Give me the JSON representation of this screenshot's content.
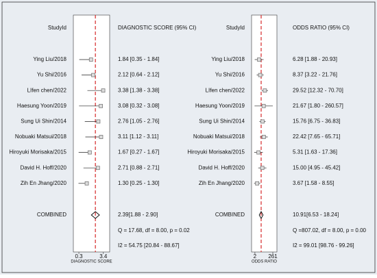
{
  "chart_data": [
    {
      "type": "forest",
      "id_label": "StudyId",
      "stat_label": "DIAGNOSTIC SCORE (95% CI)",
      "studies": [
        "Ying Liu/2018",
        "Yu Shi/2016",
        "LIfen chen/2022",
        "Haesung Yoon/2019",
        "Sung Ui Shin/2014",
        "Nobuaki Matsui/2018",
        "Hiroyuki Morisaka/2015",
        "David H. Hoff/2020",
        "Zih En Jhang/2020"
      ],
      "estimates": [
        1.84,
        2.12,
        3.38,
        3.08,
        2.76,
        3.11,
        1.67,
        2.71,
        1.3
      ],
      "lower": [
        0.35,
        0.64,
        1.38,
        0.32,
        1.05,
        1.12,
        0.27,
        0.88,
        0.25
      ],
      "upper": [
        1.84,
        2.12,
        3.38,
        3.08,
        2.76,
        3.11,
        1.67,
        2.71,
        1.3
      ],
      "value_labels": [
        "1.84 [0.35 - 1.84]",
        "2.12 [0.64 - 2.12]",
        "3.38 [1.38 - 3.38]",
        "3.08 [0.32 - 3.08]",
        "2.76 [1.05 - 2.76]",
        "3.11 [1.12 - 3.11]",
        "1.67 [0.27 - 1.67]",
        "2.71 [0.88 - 2.71]",
        "1.30 [0.25 - 1.30]"
      ],
      "combined": {
        "label": "COMBINED",
        "estimate": 2.39,
        "lower": 1.88,
        "upper": 2.9,
        "value_label": "2.39[1.88 - 2.90]"
      },
      "q_text": "Q = 17.68, df = 8.00, p =  0.02",
      "i2_text": "I2 = 54.75 [20.84 - 88.67]",
      "xlabel": "DIAGNOSTIC SCORE",
      "xlim": [
        -0.4,
        4.2
      ],
      "xticks": [
        0.3,
        3.4
      ],
      "log": false,
      "ref_color": "#d62728",
      "marker_color": "#777777"
    },
    {
      "type": "forest",
      "id_label": "StudyId",
      "stat_label": "ODDS RATIO (95% CI)",
      "studies": [
        "Ying Liu/2018",
        "Yu Shi/2016",
        "LIfen chen/2022",
        "Haesung Yoon/2019",
        "Sung Ui Shin/2014",
        "Nobuaki Matsui/2018",
        "Hiroyuki Morisaka/2015",
        "David H. Hoff/2020",
        "Zih En Jhang/2020"
      ],
      "estimates": [
        6.28,
        8.37,
        29.52,
        21.67,
        15.76,
        22.42,
        5.31,
        15.0,
        3.67
      ],
      "lower": [
        1.88,
        3.22,
        12.32,
        1.8,
        6.75,
        7.65,
        1.63,
        4.95,
        1.58
      ],
      "upper": [
        20.93,
        21.76,
        70.7,
        260.57,
        36.83,
        65.71,
        17.36,
        45.42,
        8.55
      ],
      "value_labels": [
        "6.28 [1.88 - 20.93]",
        "8.37 [3.22 - 21.76]",
        "29.52 [12.32 - 70.70]",
        "21.67 [1.80 - 260.57]",
        "15.76 [6.75 - 36.83]",
        "22.42 [7.65 - 65.71]",
        "5.31 [1.63 - 17.36]",
        "15.00 [4.95 - 45.42]",
        "3.67 [1.58 - 8.55]"
      ],
      "combined": {
        "label": "COMBINED",
        "estimate": 10.91,
        "lower": 6.53,
        "upper": 18.24,
        "value_label": "10.91[6.53 - 18.24]"
      },
      "q_text": "Q =807.02, df = 8.00, p =  0.00",
      "i2_text": "I2 = 99.01 [98.76 - 99.26]",
      "xlabel": "ODDS RATIO",
      "xlim": [
        0.8,
        800
      ],
      "xticks": [
        2,
        261
      ],
      "log": true,
      "ref_color": "#d62728",
      "marker_color": "#777777"
    }
  ]
}
